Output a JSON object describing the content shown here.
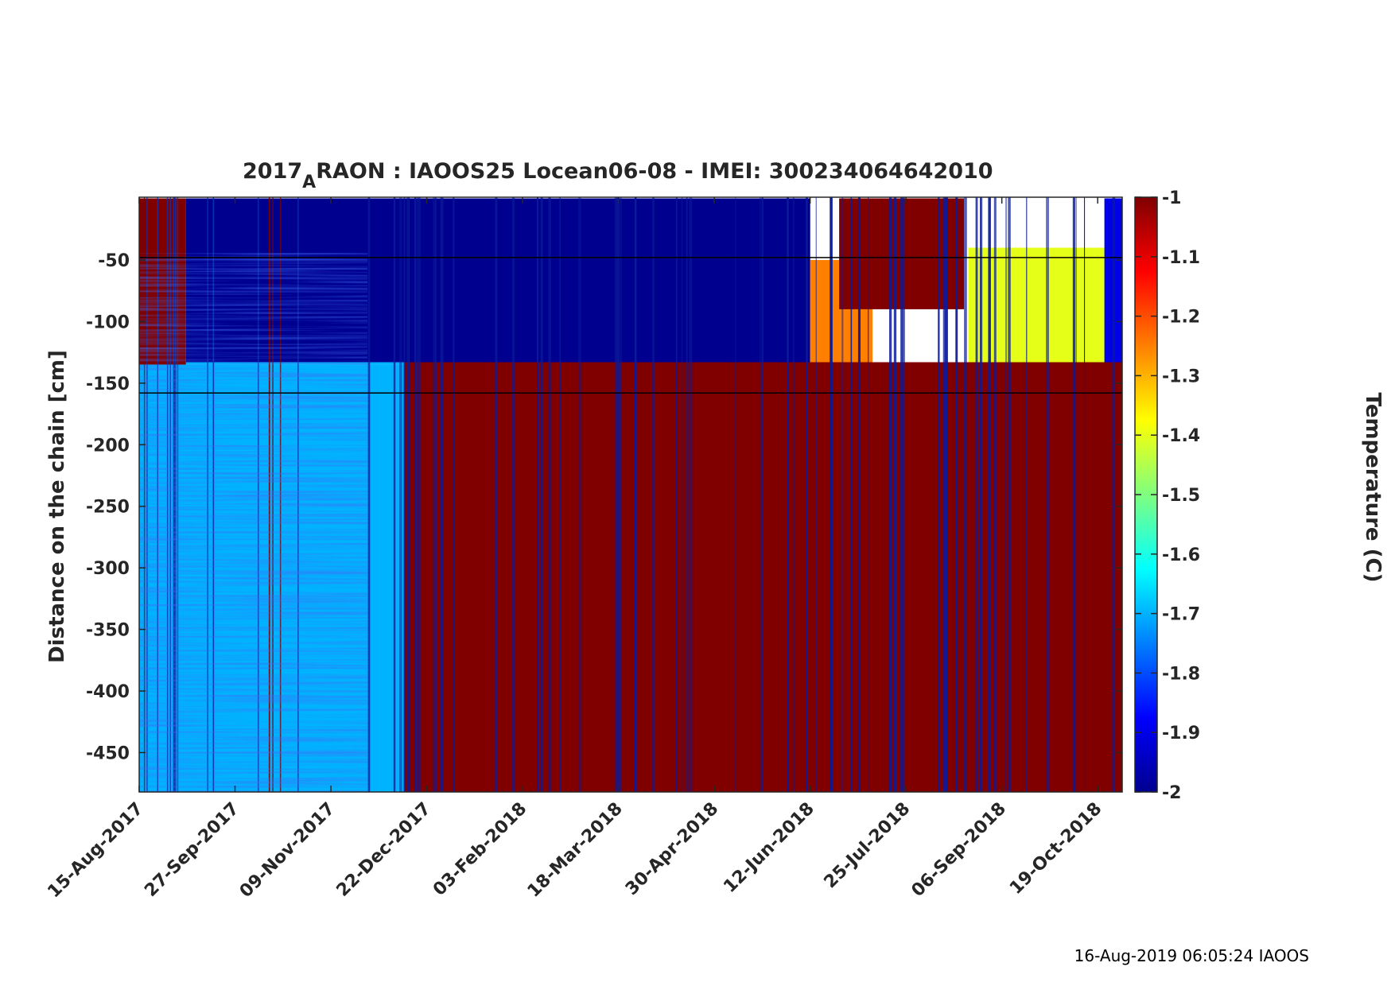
{
  "chart_data": {
    "type": "heatmap",
    "title_main": "2017",
    "title_sub": "A",
    "title_rest": "RAON : IAOOS25  Locean06-08 - IMEI: 300234064642010",
    "xlabel": "",
    "ylabel": "Distance on the chain [cm]",
    "colorbar_label": "Temperature (C)",
    "colormap": "jet",
    "colorbar_range": [
      -2,
      -1
    ],
    "colorbar_ticks": [
      "-1",
      "-1.1",
      "-1.2",
      "-1.3",
      "-1.4",
      "-1.5",
      "-1.6",
      "-1.7",
      "-1.8",
      "-1.9",
      "-2"
    ],
    "xlim": [
      "2017-08-15",
      "2018-10-30"
    ],
    "ylim": [
      -482,
      1
    ],
    "xticks": [
      "15-Aug-2017",
      "27-Sep-2017",
      "09-Nov-2017",
      "22-Dec-2017",
      "03-Feb-2018",
      "18-Mar-2018",
      "30-Apr-2018",
      "12-Jun-2018",
      "25-Jul-2018",
      "06-Sep-2018",
      "19-Oct-2018"
    ],
    "yticks": [
      "-50",
      "-100",
      "-150",
      "-200",
      "-250",
      "-300",
      "-350",
      "-400",
      "-450"
    ],
    "reference_lines_y": [
      -48,
      -158
    ],
    "regions": [
      {
        "x": [
          "2017-08-15",
          "2017-09-05"
        ],
        "y": [
          -135,
          0
        ],
        "temperature": -1.0
      },
      {
        "x": [
          "2017-08-15",
          "2017-12-12"
        ],
        "y": [
          -482,
          -135
        ],
        "temperature": -1.7
      },
      {
        "x": [
          "2017-09-05",
          "2017-12-12"
        ],
        "y": [
          -135,
          -60
        ],
        "temperature": -1.7
      },
      {
        "x": [
          "2017-12-12",
          "2018-10-30"
        ],
        "y": [
          -482,
          -133
        ],
        "temperature": -1.0
      },
      {
        "x": [
          "2017-09-05",
          "2018-06-12"
        ],
        "y": [
          -133,
          0
        ],
        "temperature": -2.0
      },
      {
        "x": [
          "2018-06-12",
          "2018-07-10"
        ],
        "y": [
          -133,
          -50
        ],
        "temperature": -1.25
      },
      {
        "x": [
          "2018-06-25",
          "2018-08-20"
        ],
        "y": [
          -90,
          0
        ],
        "temperature": -1.0
      },
      {
        "x": [
          "2018-08-22",
          "2018-10-22"
        ],
        "y": [
          -133,
          -40
        ],
        "temperature": -1.4
      },
      {
        "x": [
          "2018-10-22",
          "2018-10-30"
        ],
        "y": [
          -133,
          0
        ],
        "temperature": -1.9
      }
    ]
  },
  "footer": "16-Aug-2019 06:05:24 IAOOS",
  "colors": {
    "warm": "#800000",
    "cold": "#00008f",
    "text": "#262626"
  }
}
